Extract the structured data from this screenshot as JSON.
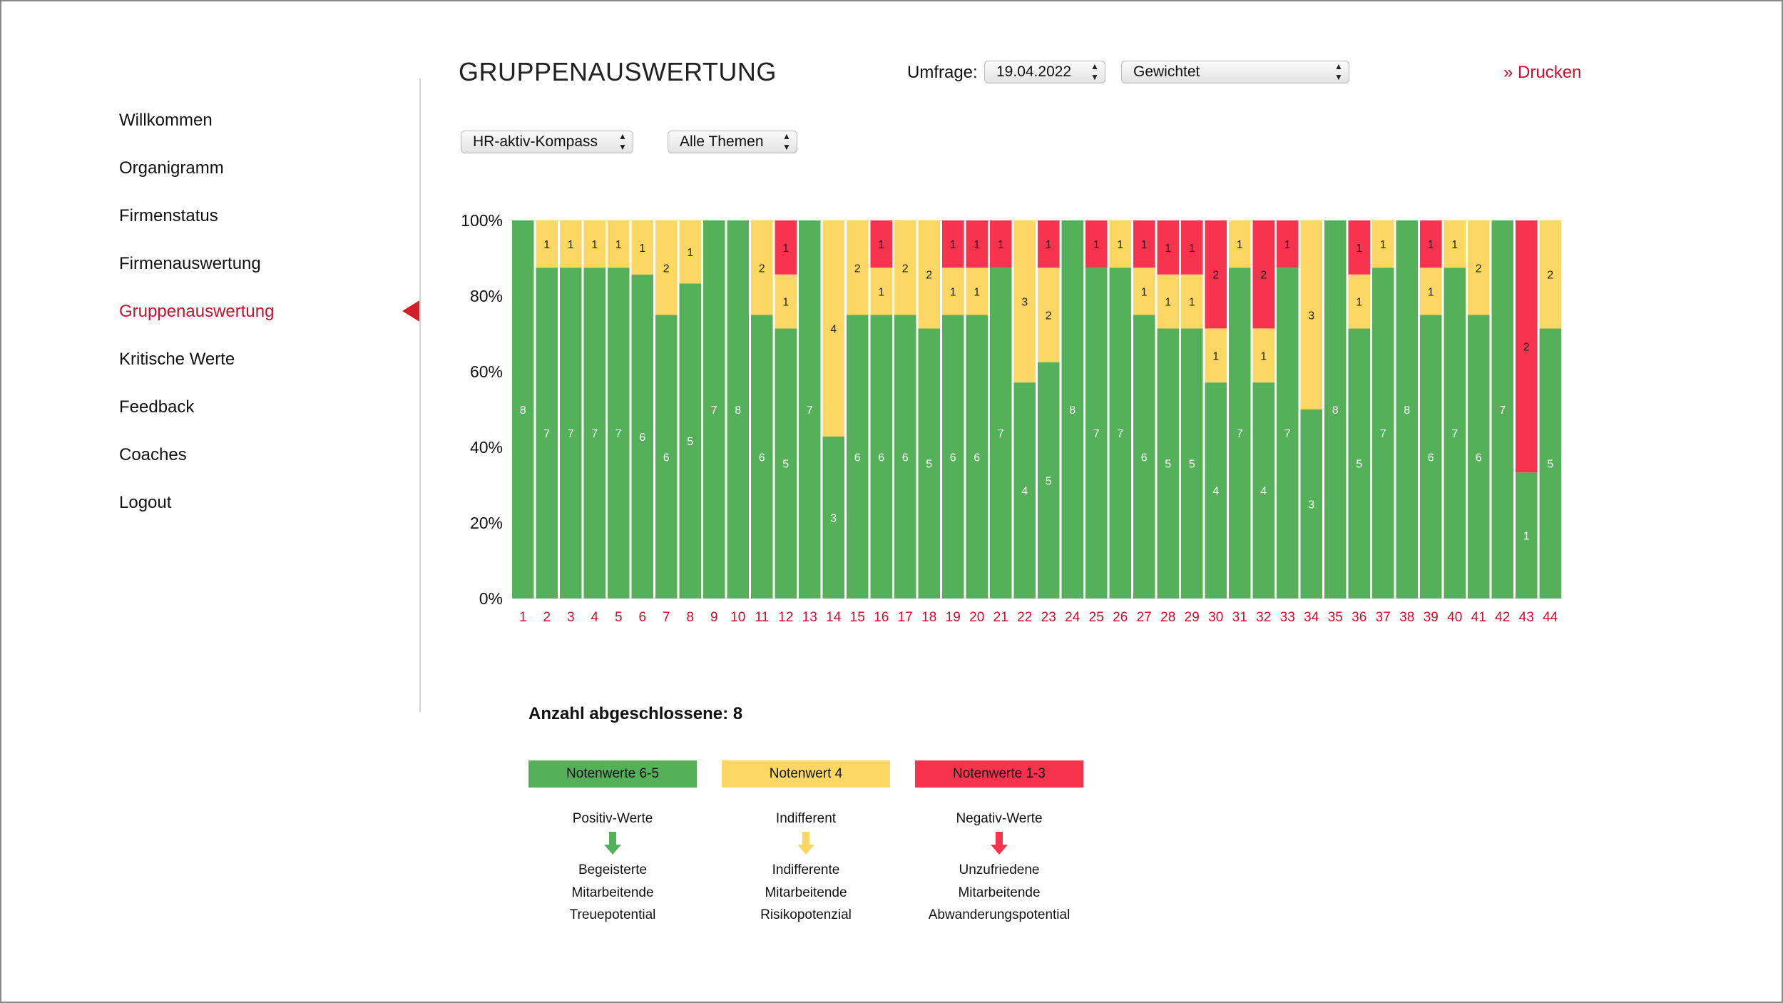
{
  "sidebar": {
    "items": [
      {
        "label": "Willkommen",
        "active": false
      },
      {
        "label": "Organigramm",
        "active": false
      },
      {
        "label": "Firmenstatus",
        "active": false
      },
      {
        "label": "Firmenauswertung",
        "active": false
      },
      {
        "label": "Gruppenauswertung",
        "active": true
      },
      {
        "label": "Kritische Werte",
        "active": false
      },
      {
        "label": "Feedback",
        "active": false
      },
      {
        "label": "Coaches",
        "active": false
      },
      {
        "label": "Logout",
        "active": false
      }
    ]
  },
  "header": {
    "title": "GRUPPENAUSWERTUNG",
    "survey_label": "Umfrage:",
    "survey_date": "19.04.2022",
    "weighting": "Gewichtet",
    "print_label": "» Drucken"
  },
  "filters": {
    "questionnaire": "HR-aktiv-Kompass",
    "topics": "Alle Themen"
  },
  "colors": {
    "green": "#55b05a",
    "yellow": "#fdd764",
    "red": "#f7334d",
    "accent": "#c8102e"
  },
  "chart_data": {
    "type": "bar",
    "stacked": true,
    "normalized_percent": true,
    "y_ticks": [
      "0%",
      "20%",
      "40%",
      "60%",
      "80%",
      "100%"
    ],
    "categories": [
      "1",
      "2",
      "3",
      "4",
      "5",
      "6",
      "7",
      "8",
      "9",
      "10",
      "11",
      "12",
      "13",
      "14",
      "15",
      "16",
      "17",
      "18",
      "19",
      "20",
      "21",
      "22",
      "23",
      "24",
      "25",
      "26",
      "27",
      "28",
      "29",
      "30",
      "31",
      "32",
      "33",
      "34",
      "35",
      "36",
      "37",
      "38",
      "39",
      "40",
      "41",
      "42",
      "43",
      "44"
    ],
    "series": [
      {
        "name": "Notenwerte 6-5",
        "color": "#55b05a",
        "values": [
          8,
          7,
          7,
          7,
          7,
          6,
          6,
          5,
          7,
          8,
          6,
          5,
          7,
          3,
          6,
          6,
          6,
          5,
          6,
          6,
          7,
          4,
          5,
          8,
          7,
          7,
          6,
          5,
          5,
          4,
          7,
          4,
          7,
          3,
          8,
          5,
          7,
          8,
          6,
          7,
          6,
          7,
          1,
          5
        ]
      },
      {
        "name": "Notenwert 4",
        "color": "#fdd764",
        "values": [
          0,
          1,
          1,
          1,
          1,
          1,
          2,
          1,
          0,
          0,
          2,
          1,
          0,
          4,
          2,
          1,
          2,
          2,
          1,
          1,
          0,
          3,
          2,
          0,
          0,
          1,
          1,
          1,
          1,
          1,
          1,
          1,
          0,
          3,
          0,
          1,
          1,
          0,
          1,
          1,
          2,
          0,
          0,
          2
        ]
      },
      {
        "name": "Notenwerte 1-3",
        "color": "#f7334d",
        "values": [
          0,
          0,
          0,
          0,
          0,
          0,
          0,
          0,
          0,
          0,
          0,
          1,
          0,
          0,
          0,
          1,
          0,
          0,
          1,
          1,
          1,
          0,
          1,
          0,
          1,
          0,
          1,
          1,
          1,
          2,
          0,
          2,
          1,
          0,
          0,
          1,
          0,
          0,
          1,
          0,
          0,
          0,
          2,
          0
        ]
      }
    ]
  },
  "summary": {
    "completed": "Anzahl abgeschlossene: 8"
  },
  "legend": [
    {
      "label": "Notenwerte 6-5",
      "heading": "Positiv-Werte",
      "arrow_icon": "arrow-down-green-icon",
      "lines": [
        "Begeisterte",
        "Mitarbeitende",
        "Treuepotential"
      ]
    },
    {
      "label": "Notenwert 4",
      "heading": "Indifferent",
      "arrow_icon": "arrow-down-yellow-icon",
      "lines": [
        "Indifferente",
        "Mitarbeitende",
        "Risikopotenzial"
      ]
    },
    {
      "label": "Notenwerte 1-3",
      "heading": "Negativ-Werte",
      "arrow_icon": "arrow-down-red-icon",
      "lines": [
        "Unzufriedene",
        "Mitarbeitende",
        "Abwanderungspotential"
      ]
    }
  ]
}
